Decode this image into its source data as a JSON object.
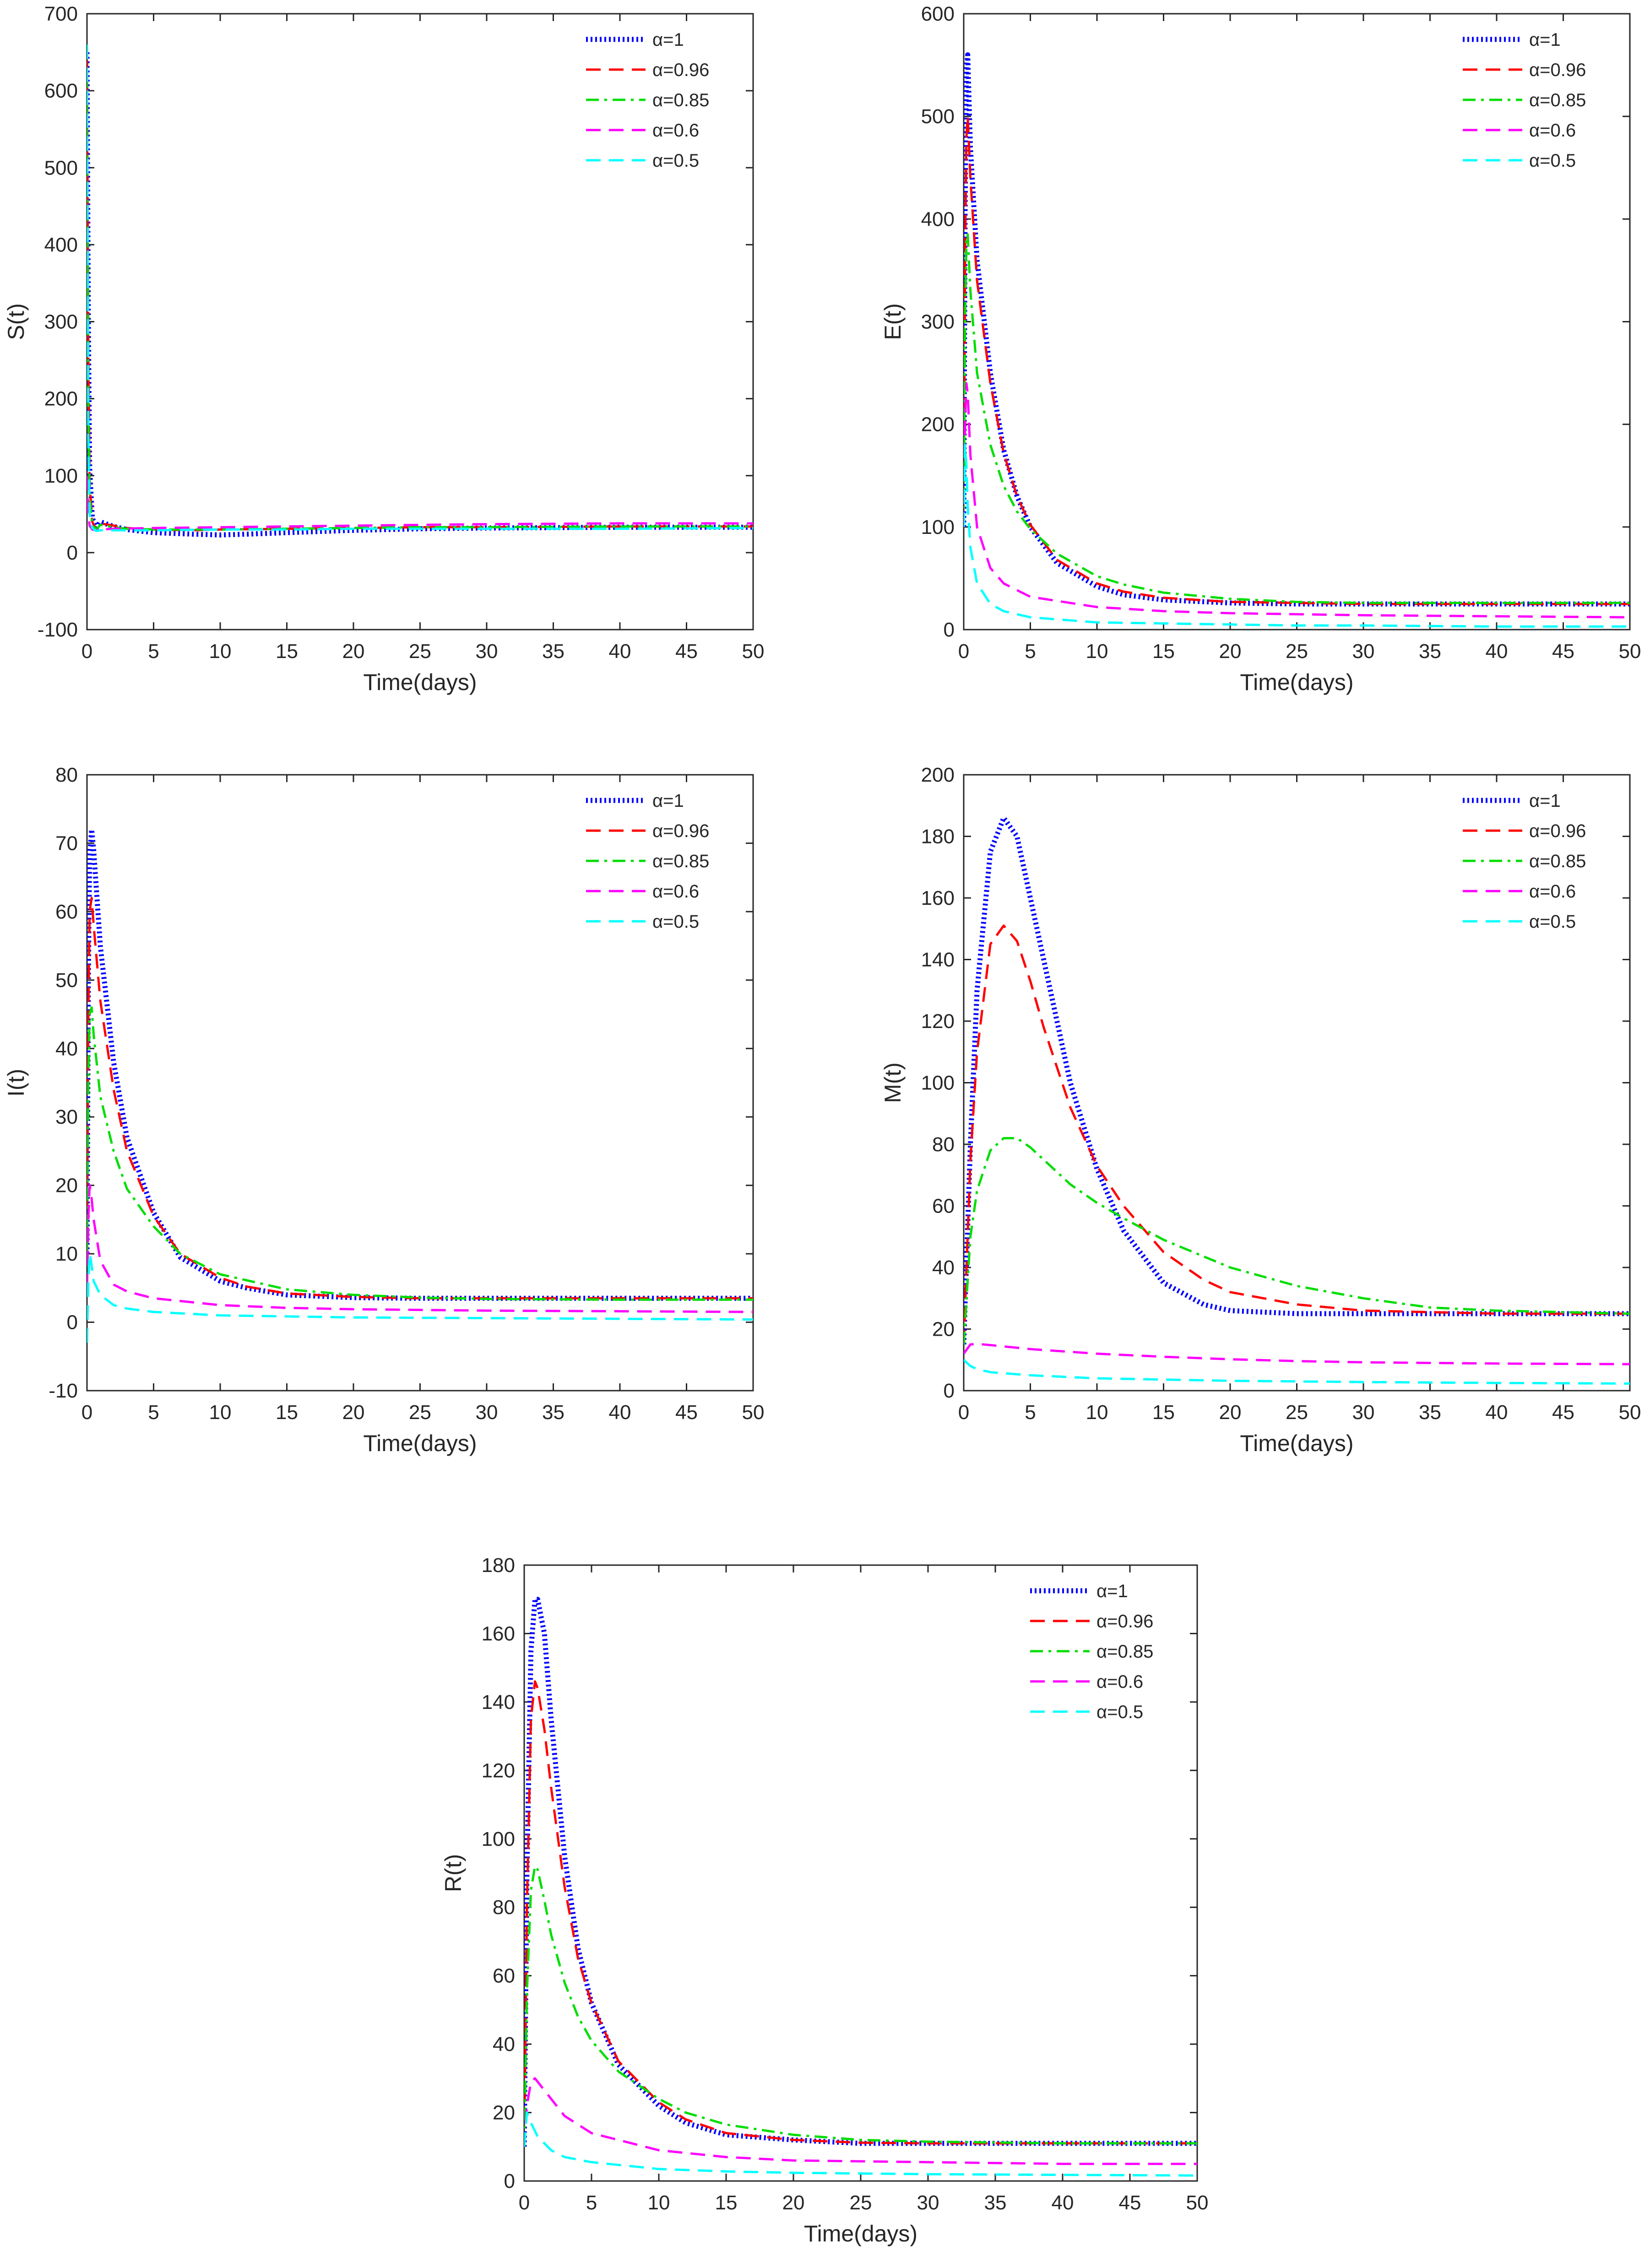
{
  "figure": {
    "background": "#ffffff",
    "axis_color": "#262626"
  },
  "styles": [
    {
      "color": "#0000ff",
      "dash": "dotted",
      "width": "thick"
    },
    {
      "color": "#ff0000",
      "dash": "dashed",
      "width": "normal"
    },
    {
      "color": "#00dd00",
      "dash": "dashdot",
      "width": "normal"
    },
    {
      "color": "#ff00ff",
      "dash": "dashed",
      "width": "normal"
    },
    {
      "color": "#00ffff",
      "dash": "dashed",
      "width": "normal"
    }
  ],
  "chart_data": [
    {
      "type": "line",
      "ylabel": "S(t)",
      "xlabel": "Time(days)",
      "xlim": [
        0,
        50
      ],
      "ylim": [
        -100,
        700
      ],
      "xticks": [
        "0",
        "5",
        "10",
        "15",
        "20",
        "25",
        "30",
        "35",
        "40",
        "45",
        "50"
      ],
      "yticks": [
        "-100",
        "0",
        "100",
        "200",
        "300",
        "400",
        "500",
        "600",
        "700"
      ],
      "legend": "top-right",
      "series": [
        {
          "name": "α=1",
          "x": [
            0,
            0.1,
            0.2,
            0.4,
            0.7,
            1,
            2,
            3,
            5,
            8,
            10,
            12,
            15,
            20,
            25,
            30,
            40,
            50
          ],
          "y": [
            650,
            300,
            110,
            45,
            32,
            40,
            34,
            30,
            26,
            24,
            23,
            24,
            26,
            29,
            31,
            32,
            33,
            33
          ]
        },
        {
          "name": "α=0.96",
          "x": [
            0,
            0.1,
            0.2,
            0.4,
            0.7,
            1,
            2,
            3,
            5,
            8,
            10,
            15,
            20,
            25,
            30,
            40,
            50
          ],
          "y": [
            640,
            260,
            90,
            40,
            30,
            38,
            35,
            32,
            30,
            29,
            30,
            31,
            32,
            33,
            33,
            34,
            34
          ]
        },
        {
          "name": "α=0.85",
          "x": [
            0,
            0.1,
            0.2,
            0.4,
            0.7,
            1,
            2,
            3,
            5,
            10,
            15,
            20,
            25,
            30,
            40,
            50
          ],
          "y": [
            620,
            180,
            70,
            36,
            30,
            36,
            33,
            31,
            30,
            30,
            31,
            32,
            33,
            33,
            34,
            34
          ]
        },
        {
          "name": "α=0.6",
          "x": [
            0,
            0.1,
            0.2,
            0.4,
            0.7,
            1,
            2,
            5,
            10,
            15,
            20,
            25,
            30,
            40,
            50
          ],
          "y": [
            100,
            50,
            35,
            30,
            29,
            30,
            31,
            32,
            33,
            34,
            35,
            36,
            37,
            38,
            38
          ]
        },
        {
          "name": "α=0.5",
          "x": [
            0,
            0.1,
            0.2,
            0.4,
            0.7,
            1,
            2,
            5,
            10,
            15,
            20,
            25,
            30,
            40,
            50
          ],
          "y": [
            660,
            150,
            50,
            32,
            28,
            29,
            29,
            29,
            30,
            30,
            31,
            31,
            31,
            31,
            32
          ]
        }
      ]
    },
    {
      "type": "line",
      "ylabel": "E(t)",
      "xlabel": "Time(days)",
      "xlim": [
        0,
        50
      ],
      "ylim": [
        0,
        600
      ],
      "xticks": [
        "0",
        "5",
        "10",
        "15",
        "20",
        "25",
        "30",
        "35",
        "40",
        "45",
        "50"
      ],
      "yticks": [
        "0",
        "100",
        "200",
        "300",
        "400",
        "500",
        "600"
      ],
      "legend": "top-right",
      "series": [
        {
          "name": "α=1",
          "x": [
            0,
            0.1,
            0.2,
            0.3,
            0.5,
            1,
            2,
            3,
            4,
            5,
            7,
            10,
            12,
            15,
            20,
            25,
            30,
            40,
            50
          ],
          "y": [
            100,
            400,
            545,
            560,
            470,
            360,
            250,
            175,
            130,
            100,
            65,
            42,
            34,
            29,
            26,
            25,
            25,
            25,
            25
          ]
        },
        {
          "name": "α=0.96",
          "x": [
            0,
            0.1,
            0.2,
            0.3,
            0.5,
            1,
            2,
            3,
            4,
            5,
            7,
            10,
            12,
            15,
            20,
            25,
            30,
            40,
            50
          ],
          "y": [
            100,
            360,
            480,
            500,
            440,
            340,
            240,
            172,
            130,
            102,
            68,
            45,
            37,
            31,
            27,
            26,
            25,
            25,
            25
          ]
        },
        {
          "name": "α=0.85",
          "x": [
            0,
            0.1,
            0.2,
            0.3,
            0.5,
            1,
            2,
            3,
            4,
            5,
            7,
            10,
            12,
            15,
            20,
            25,
            30,
            40,
            50
          ],
          "y": [
            100,
            300,
            380,
            385,
            330,
            250,
            180,
            140,
            115,
            98,
            74,
            52,
            44,
            36,
            30,
            27,
            26,
            26,
            26
          ]
        },
        {
          "name": "α=0.6",
          "x": [
            0,
            0.1,
            0.2,
            0.3,
            0.5,
            1,
            2,
            3,
            5,
            10,
            15,
            20,
            25,
            30,
            40,
            50
          ],
          "y": [
            100,
            200,
            240,
            230,
            170,
            100,
            60,
            45,
            32,
            22,
            18,
            16,
            15,
            14,
            13,
            12
          ]
        },
        {
          "name": "α=0.5",
          "x": [
            0,
            0.1,
            0.2,
            0.3,
            0.5,
            1,
            2,
            3,
            5,
            10,
            15,
            20,
            25,
            30,
            40,
            50
          ],
          "y": [
            100,
            180,
            160,
            120,
            80,
            45,
            25,
            18,
            12,
            7,
            6,
            5,
            4,
            4,
            3,
            3
          ]
        }
      ]
    },
    {
      "type": "line",
      "ylabel": "I(t)",
      "xlabel": "Time(days)",
      "xlim": [
        0,
        50
      ],
      "ylim": [
        -10,
        80
      ],
      "xticks": [
        "0",
        "5",
        "10",
        "15",
        "20",
        "25",
        "30",
        "35",
        "40",
        "45",
        "50"
      ],
      "yticks": [
        "-10",
        "0",
        "10",
        "20",
        "30",
        "40",
        "50",
        "60",
        "70",
        "80"
      ],
      "legend": "top-right",
      "series": [
        {
          "name": "α=1",
          "x": [
            0,
            0.1,
            0.2,
            0.35,
            0.5,
            1,
            2,
            3,
            5,
            7,
            10,
            12,
            15,
            20,
            25,
            30,
            40,
            50
          ],
          "y": [
            10,
            50,
            68,
            72,
            69,
            55,
            38,
            27,
            16,
            9.5,
            6,
            5,
            4,
            3.6,
            3.5,
            3.5,
            3.5,
            3.5
          ]
        },
        {
          "name": "α=0.96",
          "x": [
            0,
            0.1,
            0.2,
            0.35,
            0.5,
            1,
            2,
            3,
            5,
            7,
            10,
            12,
            15,
            20,
            25,
            30,
            40,
            50
          ],
          "y": [
            10,
            45,
            60,
            62,
            58,
            47,
            34,
            25,
            15.5,
            10,
            6.5,
            5.2,
            4.2,
            3.7,
            3.5,
            3.5,
            3.5,
            3.5
          ]
        },
        {
          "name": "α=0.85",
          "x": [
            0,
            0.1,
            0.2,
            0.35,
            0.5,
            1,
            2,
            3,
            5,
            7,
            10,
            15,
            20,
            25,
            30,
            40,
            50
          ],
          "y": [
            10,
            35,
            45,
            46,
            42,
            33,
            25,
            19.5,
            14,
            10,
            7,
            4.8,
            4,
            3.6,
            3.4,
            3.3,
            3.3
          ]
        },
        {
          "name": "α=0.6",
          "x": [
            0,
            0.1,
            0.2,
            0.3,
            0.5,
            1,
            2,
            3,
            5,
            10,
            15,
            20,
            30,
            40,
            50
          ],
          "y": [
            5,
            15,
            20,
            19,
            15,
            9,
            5.5,
            4.5,
            3.5,
            2.5,
            2.1,
            1.9,
            1.7,
            1.6,
            1.5
          ]
        },
        {
          "name": "α=0.5",
          "x": [
            0,
            0.1,
            0.2,
            0.3,
            0.5,
            1,
            2,
            3,
            5,
            10,
            20,
            30,
            40,
            50
          ],
          "y": [
            -3,
            6,
            10,
            9,
            6,
            4,
            2.5,
            2,
            1.5,
            1,
            0.7,
            0.6,
            0.5,
            0.4
          ]
        }
      ]
    },
    {
      "type": "line",
      "ylabel": "M(t)",
      "xlabel": "Time(days)",
      "xlim": [
        0,
        50
      ],
      "ylim": [
        0,
        200
      ],
      "xticks": [
        "0",
        "5",
        "10",
        "15",
        "20",
        "25",
        "30",
        "35",
        "40",
        "45",
        "50"
      ],
      "yticks": [
        "0",
        "20",
        "40",
        "60",
        "80",
        "100",
        "120",
        "140",
        "160",
        "180",
        "200"
      ],
      "legend": "top-right",
      "series": [
        {
          "name": "α=1",
          "x": [
            0,
            0.5,
            1,
            2,
            3,
            4,
            5,
            6,
            8,
            10,
            12,
            15,
            18,
            20,
            25,
            30,
            40,
            50
          ],
          "y": [
            15,
            80,
            130,
            175,
            186,
            180,
            160,
            140,
            100,
            72,
            52,
            35,
            28,
            26,
            25,
            25,
            25,
            25
          ]
        },
        {
          "name": "α=0.96",
          "x": [
            0,
            0.5,
            1,
            2,
            3,
            4,
            5,
            6,
            8,
            10,
            12,
            15,
            18,
            20,
            25,
            30,
            40,
            50
          ],
          "y": [
            15,
            75,
            110,
            145,
            151,
            146,
            133,
            118,
            92,
            73,
            60,
            45,
            36,
            32,
            28,
            26,
            25,
            25
          ]
        },
        {
          "name": "α=0.85",
          "x": [
            0,
            0.5,
            1,
            2,
            3,
            4,
            5,
            6,
            8,
            10,
            12,
            15,
            20,
            25,
            30,
            35,
            40,
            50
          ],
          "y": [
            15,
            50,
            65,
            78,
            82,
            82,
            79,
            75,
            67,
            61,
            56,
            49,
            40,
            34,
            30,
            27,
            26,
            25
          ]
        },
        {
          "name": "α=0.6",
          "x": [
            0,
            0.5,
            1,
            2,
            5,
            10,
            15,
            20,
            25,
            30,
            40,
            50
          ],
          "y": [
            12,
            15,
            15.2,
            14.8,
            13.5,
            12,
            11,
            10.2,
            9.6,
            9.2,
            8.8,
            8.6
          ]
        },
        {
          "name": "α=0.5",
          "x": [
            0,
            0.5,
            1,
            2,
            5,
            10,
            15,
            20,
            25,
            30,
            40,
            50
          ],
          "y": [
            10,
            8,
            7,
            6,
            5,
            4,
            3.6,
            3.2,
            3,
            2.8,
            2.5,
            2.3
          ]
        }
      ]
    },
    {
      "type": "line",
      "ylabel": "R(t)",
      "xlabel": "Time(days)",
      "xlim": [
        0,
        50
      ],
      "ylim": [
        0,
        180
      ],
      "xticks": [
        "0",
        "5",
        "10",
        "15",
        "20",
        "25",
        "30",
        "35",
        "40",
        "45",
        "50"
      ],
      "yticks": [
        "0",
        "20",
        "40",
        "60",
        "80",
        "100",
        "120",
        "140",
        "160",
        "180"
      ],
      "legend": "top-right",
      "series": [
        {
          "name": "α=1",
          "x": [
            0,
            0.2,
            0.5,
            0.8,
            1,
            1.5,
            2,
            3,
            4,
            5,
            7,
            10,
            12,
            15,
            20,
            25,
            30,
            40,
            50
          ],
          "y": [
            10,
            90,
            155,
            170,
            170,
            160,
            135,
            95,
            68,
            52,
            34,
            22,
            17,
            13.5,
            12,
            11,
            11,
            11,
            11
          ]
        },
        {
          "name": "α=0.96",
          "x": [
            0,
            0.2,
            0.5,
            0.8,
            1,
            1.5,
            2,
            3,
            4,
            5,
            7,
            10,
            12,
            15,
            20,
            25,
            30,
            40,
            50
          ],
          "y": [
            10,
            80,
            135,
            146,
            144,
            132,
            115,
            86,
            65,
            52,
            35,
            23,
            18,
            14,
            12,
            11.2,
            11,
            11,
            11
          ]
        },
        {
          "name": "α=0.85",
          "x": [
            0,
            0.2,
            0.5,
            0.8,
            1,
            1.5,
            2,
            3,
            4,
            5,
            7,
            10,
            12,
            15,
            20,
            25,
            30,
            40,
            50
          ],
          "y": [
            10,
            55,
            85,
            92,
            91,
            82,
            72,
            58,
            48,
            41,
            32,
            24,
            20,
            16.5,
            13.5,
            12,
            11.5,
            11,
            11
          ]
        },
        {
          "name": "α=0.6",
          "x": [
            0,
            0.2,
            0.5,
            0.8,
            1,
            2,
            3,
            5,
            10,
            15,
            20,
            30,
            40,
            50
          ],
          "y": [
            10,
            22,
            29,
            30,
            29,
            24,
            19,
            14,
            9,
            7,
            6,
            5.5,
            5,
            5
          ]
        },
        {
          "name": "α=0.5",
          "x": [
            0,
            0.2,
            0.5,
            1,
            2,
            3,
            5,
            10,
            15,
            20,
            30,
            40,
            50
          ],
          "y": [
            10,
            20,
            17,
            13,
            9,
            7,
            5.5,
            3.5,
            2.8,
            2.4,
            2,
            1.8,
            1.6
          ]
        }
      ]
    }
  ]
}
